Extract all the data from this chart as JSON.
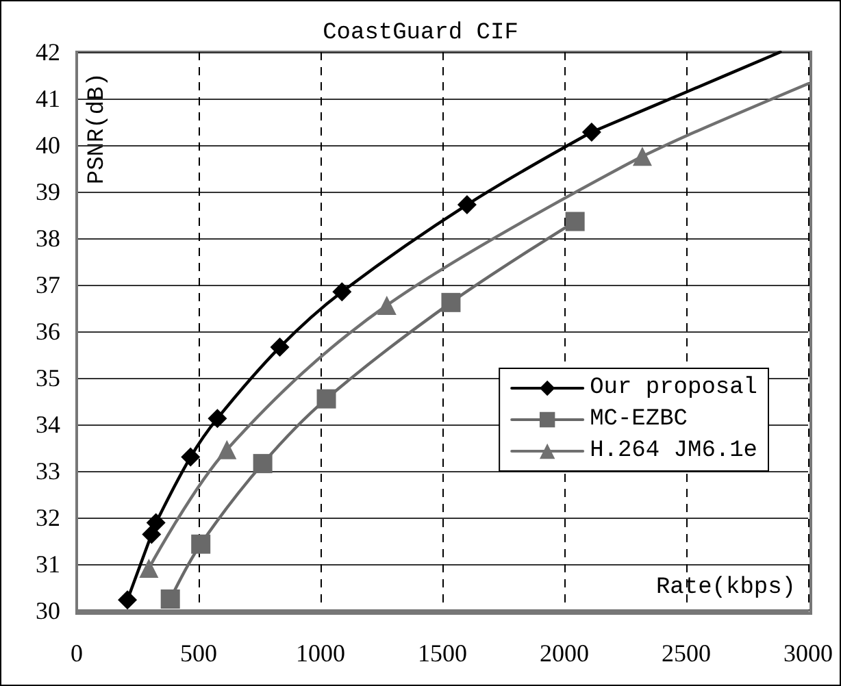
{
  "chart_data": {
    "type": "line",
    "title": "CoastGuard CIF",
    "xlabel": "Rate(kbps)",
    "ylabel": "PSNR(dB)",
    "xlim": [
      0,
      3000
    ],
    "xticks": [
      0,
      500,
      1000,
      1500,
      2000,
      2500,
      3000
    ],
    "ylim": [
      30,
      42
    ],
    "yticks": [
      30,
      31,
      32,
      33,
      34,
      35,
      36,
      37,
      38,
      39,
      40,
      41,
      42
    ],
    "grid": true,
    "legend": "right",
    "line_style": "solid",
    "series": [
      {
        "name": "Our proposal",
        "color": "#000000",
        "marker": "diamond",
        "x": [
          208,
          307,
          325,
          467,
          577,
          833,
          1088,
          1601,
          2112
        ],
        "values": [
          30.23,
          31.64,
          31.89,
          33.3,
          34.13,
          35.66,
          36.85,
          38.72,
          40.28
        ]
      },
      {
        "name": "MC-EZBC",
        "color": "#696969",
        "marker": "square",
        "x": [
          384,
          509,
          763,
          1024,
          1535,
          2044
        ],
        "values": [
          30.25,
          31.43,
          33.16,
          34.55,
          36.62,
          38.36
        ]
      },
      {
        "name": "H.264 JM6.1e",
        "color": "#707070",
        "marker": "triangle",
        "x": [
          296,
          616,
          1272,
          2320
        ],
        "values": [
          30.91,
          33.46,
          36.56,
          39.76
        ]
      },
      {
        "type": "line",
        "color": "#000000",
        "marker": "none",
        "x": [
          2112,
          2500,
          2886
        ],
        "values": [
          40.28,
          41.14,
          42
        ]
      },
      {
        "type": "line",
        "color": "#707070",
        "marker": "none",
        "x": [
          2320,
          2500,
          3000
        ],
        "values": [
          39.76,
          40.2,
          41.32
        ]
      }
    ]
  }
}
